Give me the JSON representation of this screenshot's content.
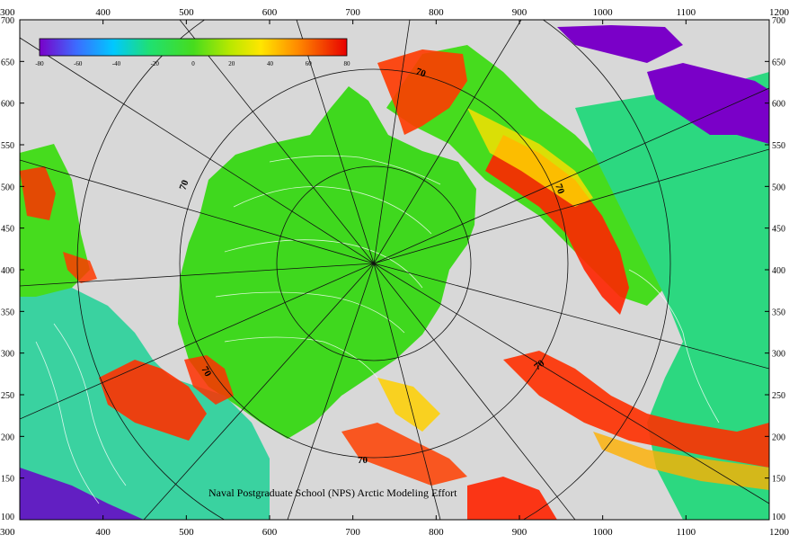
{
  "map": {
    "credit": "Naval Postgraduate School (NPS) Arctic Modeling Effort",
    "x_axis_ticks": [
      "300",
      "400",
      "500",
      "600",
      "700",
      "800",
      "900",
      "1000",
      "1100",
      "1200"
    ],
    "y_axis_ticks": [
      "700",
      "650",
      "600",
      "550",
      "500",
      "450",
      "400",
      "350",
      "300",
      "250",
      "200",
      "150",
      "100"
    ],
    "latitude_labels": [
      "70",
      "70",
      "70",
      "70",
      "70",
      "70"
    ],
    "colorbar": {
      "tick_labels": [
        "-80",
        "-60",
        "-40",
        "-20",
        "0",
        "20",
        "40",
        "60",
        "80"
      ],
      "colors": [
        "#7a00c8",
        "#3c6cff",
        "#00c8ff",
        "#20e070",
        "#46dc1e",
        "#9ee600",
        "#ffe600",
        "#ff9a00",
        "#ff3000",
        "#e80000"
      ]
    },
    "colors": {
      "land": "#d8d8d8",
      "ocean_low": "#46dc1e",
      "ocean_high": "#ff2a00",
      "contours": "#ffffff",
      "grid": "#111111"
    }
  }
}
